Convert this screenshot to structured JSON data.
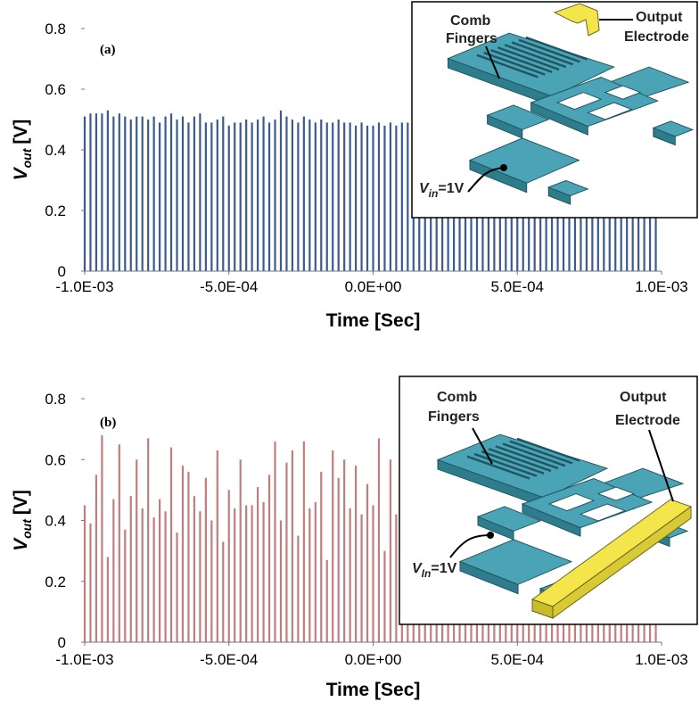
{
  "chart_data": [
    {
      "type": "bar",
      "panel_label": "(a)",
      "color": "#3b5b8e",
      "xlabel": "Time [Sec]",
      "ylabel": {
        "symbol": "V",
        "subscript": "out",
        "unit": "[V]"
      },
      "xlim": [
        -0.001,
        0.001
      ],
      "ylim": [
        0,
        0.8
      ],
      "xticks": [
        {
          "value": -0.001,
          "label": "-1.0E-03"
        },
        {
          "value": -0.0005,
          "label": "-5.0E-04"
        },
        {
          "value": 0,
          "label": "0.0E+00"
        },
        {
          "value": 0.0005,
          "label": "5.0E-04"
        },
        {
          "value": 0.001,
          "label": "1.0E-03"
        }
      ],
      "yticks": [
        0,
        0.2,
        0.4,
        0.6,
        0.8
      ],
      "inset": {
        "comb": [
          "Comb",
          "Fingers"
        ],
        "output": [
          "Output",
          "Electrode"
        ],
        "vin": {
          "symbol": "V",
          "subscript": "in",
          "rest": "=1V"
        }
      },
      "x": [
        -0.001,
        -0.00098,
        -0.00096,
        -0.00094,
        -0.00092,
        -0.0009,
        -0.00088,
        -0.00086,
        -0.00084,
        -0.00082,
        -0.0008,
        -0.00078,
        -0.00076,
        -0.00074,
        -0.00072,
        -0.0007,
        -0.00068,
        -0.00066,
        -0.00064,
        -0.00062,
        -0.0006,
        -0.00058,
        -0.00056,
        -0.00054,
        -0.00052,
        -0.0005,
        -0.00048,
        -0.00046,
        -0.00044,
        -0.00042,
        -0.0004,
        -0.00038,
        -0.00036,
        -0.00034,
        -0.00032,
        -0.0003,
        -0.00028,
        -0.00026,
        -0.00024,
        -0.00022,
        -0.0002,
        -0.00018,
        -0.00016,
        -0.00014,
        -0.00012,
        -0.0001,
        -8e-05,
        -6e-05,
        -4e-05,
        -2e-05,
        0,
        2e-05,
        4e-05,
        6e-05,
        8e-05,
        0.0001,
        0.00012,
        0.00014,
        0.00016,
        0.00018,
        0.0002,
        0.00022,
        0.00024,
        0.00026,
        0.00028,
        0.0003,
        0.00032,
        0.00034,
        0.00036,
        0.00038,
        0.0004,
        0.00042,
        0.00044,
        0.00046,
        0.00048,
        0.0005,
        0.00052,
        0.00054,
        0.00056,
        0.00058,
        0.0006,
        0.00062,
        0.00064,
        0.00066,
        0.00068,
        0.0007,
        0.00072,
        0.00074,
        0.00076,
        0.00078,
        0.0008,
        0.00082,
        0.00084,
        0.00086,
        0.00088,
        0.0009,
        0.00092,
        0.00094,
        0.00096,
        0.00098
      ],
      "values": [
        0.51,
        0.52,
        0.52,
        0.52,
        0.53,
        0.51,
        0.52,
        0.51,
        0.5,
        0.51,
        0.51,
        0.5,
        0.51,
        0.49,
        0.51,
        0.52,
        0.5,
        0.51,
        0.49,
        0.51,
        0.52,
        0.49,
        0.49,
        0.5,
        0.51,
        0.48,
        0.49,
        0.49,
        0.5,
        0.49,
        0.5,
        0.51,
        0.49,
        0.5,
        0.53,
        0.51,
        0.5,
        0.49,
        0.51,
        0.5,
        0.49,
        0.5,
        0.49,
        0.49,
        0.5,
        0.49,
        0.49,
        0.48,
        0.49,
        0.48,
        0.48,
        0.49,
        0.48,
        0.49,
        0.48,
        0.49,
        0.49,
        0.5,
        0.51,
        0.5,
        0.51,
        0.5,
        0.51,
        0.52,
        0.51,
        0.5,
        0.51,
        0.52,
        0.51,
        0.5,
        0.5,
        0.51,
        0.5,
        0.52,
        0.51,
        0.49,
        0.51,
        0.5,
        0.51,
        0.5,
        0.51,
        0.5,
        0.52,
        0.51,
        0.5,
        0.51,
        0.5,
        0.51,
        0.52,
        0.5,
        0.5,
        0.51,
        0.5,
        0.51,
        0.5,
        0.51,
        0.52,
        0.51,
        0.5,
        0.51
      ]
    },
    {
      "type": "bar",
      "panel_label": "(b)",
      "color": "#c27d7d",
      "xlabel": "Time [Sec]",
      "ylabel": {
        "symbol": "V",
        "subscript": "out",
        "unit": "[V]"
      },
      "xlim": [
        -0.001,
        0.001
      ],
      "ylim": [
        0,
        0.8
      ],
      "xticks": [
        {
          "value": -0.001,
          "label": "-1.0E-03"
        },
        {
          "value": -0.0005,
          "label": "-5.0E-04"
        },
        {
          "value": 0,
          "label": "0.0E+00"
        },
        {
          "value": 0.0005,
          "label": "5.0E-04"
        },
        {
          "value": 0.001,
          "label": "1.0E-03"
        }
      ],
      "yticks": [
        0,
        0.2,
        0.4,
        0.6,
        0.8
      ],
      "inset": {
        "comb": [
          "Comb",
          "Fingers"
        ],
        "output": [
          "Output",
          "Electrode"
        ],
        "vin": {
          "symbol": "V",
          "subscript": "In",
          "rest": "=1V"
        }
      },
      "x": [
        -0.001,
        -0.00098,
        -0.00096,
        -0.00094,
        -0.00092,
        -0.0009,
        -0.00088,
        -0.00086,
        -0.00084,
        -0.00082,
        -0.0008,
        -0.00078,
        -0.00076,
        -0.00074,
        -0.00072,
        -0.0007,
        -0.00068,
        -0.00066,
        -0.00064,
        -0.00062,
        -0.0006,
        -0.00058,
        -0.00056,
        -0.00054,
        -0.00052,
        -0.0005,
        -0.00048,
        -0.00046,
        -0.00044,
        -0.00042,
        -0.0004,
        -0.00038,
        -0.00036,
        -0.00034,
        -0.00032,
        -0.0003,
        -0.00028,
        -0.00026,
        -0.00024,
        -0.00022,
        -0.0002,
        -0.00018,
        -0.00016,
        -0.00014,
        -0.00012,
        -0.0001,
        -8e-05,
        -6e-05,
        -4e-05,
        -2e-05,
        0,
        2e-05,
        4e-05,
        6e-05,
        8e-05,
        0.0001,
        0.00012,
        0.00014,
        0.00016,
        0.00018,
        0.0002,
        0.00022,
        0.00024,
        0.00026,
        0.00028,
        0.0003,
        0.00032,
        0.00034,
        0.00036,
        0.00038,
        0.0004,
        0.00042,
        0.00044,
        0.00046,
        0.00048,
        0.0005,
        0.00052,
        0.00054,
        0.00056,
        0.00058,
        0.0006,
        0.00062,
        0.00064,
        0.00066,
        0.00068,
        0.0007,
        0.00072,
        0.00074,
        0.00076,
        0.00078,
        0.0008,
        0.00082,
        0.00084,
        0.00086,
        0.00088,
        0.0009,
        0.00092,
        0.00094,
        0.00096,
        0.00098
      ],
      "values": [
        0.45,
        0.39,
        0.55,
        0.68,
        0.28,
        0.47,
        0.65,
        0.37,
        0.48,
        0.6,
        0.44,
        0.67,
        0.41,
        0.47,
        0.43,
        0.64,
        0.36,
        0.58,
        0.56,
        0.48,
        0.43,
        0.54,
        0.4,
        0.63,
        0.33,
        0.5,
        0.44,
        0.6,
        0.45,
        0.45,
        0.51,
        0.46,
        0.55,
        0.66,
        0.4,
        0.59,
        0.63,
        0.35,
        0.66,
        0.44,
        0.46,
        0.56,
        0.27,
        0.63,
        0.54,
        0.6,
        0.44,
        0.58,
        0.42,
        0.52,
        0.45,
        0.67,
        0.3,
        0.6,
        0.42,
        0.37,
        0.57,
        0.65,
        0.45,
        0.4,
        0.55,
        0.48,
        0.62,
        0.41,
        0.5,
        0.58,
        0.44,
        0.52,
        0.6,
        0.47,
        0.53,
        0.46,
        0.61,
        0.39,
        0.49,
        0.57,
        0.43,
        0.55,
        0.63,
        0.45,
        0.56,
        0.47,
        0.6,
        0.42,
        0.51,
        0.59,
        0.45,
        0.53,
        0.61,
        0.48,
        0.54,
        0.46,
        0.63,
        0.4,
        0.5,
        0.56,
        0.44,
        0.52,
        0.62,
        0.47
      ]
    }
  ]
}
